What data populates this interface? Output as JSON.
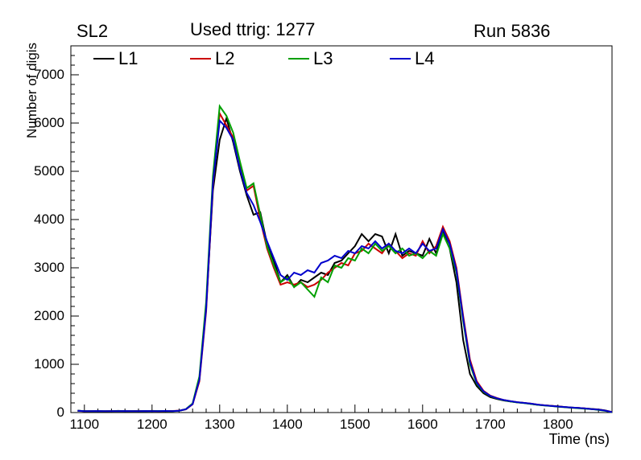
{
  "header": {
    "left_title": "SL2",
    "center_title": "Used ttrig: 1277",
    "right_title": "Run 5836"
  },
  "chart_data": {
    "type": "line",
    "title": "",
    "xlabel": "Time (ns)",
    "ylabel": "Number of digis",
    "xlim": [
      1080,
      1880
    ],
    "ylim": [
      0,
      7600
    ],
    "x_ticks": [
      1100,
      1200,
      1300,
      1400,
      1500,
      1600,
      1700,
      1800
    ],
    "y_ticks": [
      0,
      1000,
      2000,
      3000,
      4000,
      5000,
      6000,
      7000
    ],
    "x_minor_step": 20,
    "y_minor_step": 200,
    "grid": false,
    "legend_position": "top-inside-horizontal",
    "x": [
      1090,
      1100,
      1110,
      1120,
      1130,
      1140,
      1150,
      1160,
      1170,
      1180,
      1190,
      1200,
      1210,
      1220,
      1230,
      1240,
      1250,
      1260,
      1270,
      1280,
      1290,
      1300,
      1310,
      1320,
      1330,
      1340,
      1350,
      1360,
      1370,
      1380,
      1390,
      1400,
      1410,
      1420,
      1430,
      1440,
      1450,
      1460,
      1470,
      1480,
      1490,
      1500,
      1510,
      1520,
      1530,
      1540,
      1550,
      1560,
      1570,
      1580,
      1590,
      1600,
      1610,
      1620,
      1630,
      1640,
      1650,
      1660,
      1670,
      1680,
      1690,
      1700,
      1710,
      1720,
      1730,
      1740,
      1750,
      1760,
      1770,
      1780,
      1790,
      1800,
      1810,
      1820,
      1830,
      1840,
      1850,
      1860,
      1870,
      1880
    ],
    "series": [
      {
        "name": "L1",
        "color": "#000000",
        "values": [
          40,
          30,
          28,
          30,
          25,
          30,
          35,
          30,
          28,
          32,
          30,
          35,
          30,
          28,
          32,
          38,
          70,
          180,
          700,
          2200,
          4600,
          5650,
          6100,
          5600,
          5000,
          4500,
          4100,
          4150,
          3500,
          3150,
          2700,
          2850,
          2600,
          2750,
          2700,
          2800,
          2900,
          2850,
          3100,
          3150,
          3300,
          3450,
          3700,
          3550,
          3700,
          3650,
          3300,
          3700,
          3250,
          3350,
          3300,
          3250,
          3600,
          3300,
          3750,
          3400,
          2700,
          1500,
          800,
          550,
          400,
          320,
          280,
          250,
          230,
          210,
          200,
          180,
          160,
          150,
          140,
          130,
          115,
          105,
          95,
          85,
          75,
          65,
          45,
          10
        ]
      },
      {
        "name": "L2",
        "color": "#cc0000",
        "values": [
          35,
          30,
          30,
          28,
          30,
          32,
          30,
          28,
          30,
          32,
          34,
          30,
          28,
          30,
          33,
          36,
          65,
          170,
          650,
          2100,
          4700,
          6200,
          5950,
          5700,
          5100,
          4600,
          4700,
          4000,
          3400,
          3000,
          2650,
          2700,
          2650,
          2700,
          2600,
          2650,
          2750,
          2900,
          3000,
          3100,
          3050,
          3300,
          3350,
          3500,
          3400,
          3300,
          3500,
          3350,
          3200,
          3300,
          3250,
          3550,
          3300,
          3450,
          3850,
          3550,
          3000,
          2000,
          1100,
          650,
          450,
          350,
          300,
          260,
          235,
          215,
          200,
          185,
          165,
          150,
          140,
          125,
          115,
          100,
          95,
          85,
          70,
          60,
          40,
          10
        ]
      },
      {
        "name": "L3",
        "color": "#00a000",
        "values": [
          38,
          32,
          28,
          30,
          30,
          28,
          32,
          30,
          30,
          28,
          32,
          30,
          34,
          30,
          28,
          35,
          70,
          190,
          750,
          2300,
          4900,
          6350,
          6150,
          5800,
          5200,
          4650,
          4750,
          4100,
          3450,
          3050,
          2700,
          2800,
          2600,
          2700,
          2550,
          2400,
          2800,
          2700,
          3050,
          3000,
          3200,
          3150,
          3400,
          3300,
          3500,
          3350,
          3450,
          3300,
          3400,
          3250,
          3300,
          3200,
          3350,
          3250,
          3700,
          3400,
          2900,
          1900,
          1000,
          600,
          430,
          340,
          290,
          255,
          230,
          210,
          195,
          180,
          160,
          145,
          135,
          120,
          110,
          100,
          90,
          80,
          70,
          55,
          35,
          5
        ]
      },
      {
        "name": "L4",
        "color": "#0000cc",
        "values": [
          36,
          30,
          28,
          32,
          28,
          30,
          30,
          32,
          28,
          30,
          32,
          30,
          28,
          34,
          30,
          38,
          68,
          175,
          680,
          2150,
          4750,
          6050,
          5900,
          5650,
          5050,
          4550,
          4300,
          3950,
          3550,
          3200,
          2850,
          2750,
          2900,
          2850,
          2950,
          2900,
          3100,
          3150,
          3250,
          3200,
          3350,
          3300,
          3450,
          3400,
          3550,
          3400,
          3500,
          3350,
          3300,
          3400,
          3300,
          3500,
          3350,
          3400,
          3800,
          3500,
          2950,
          1950,
          1050,
          620,
          440,
          345,
          295,
          260,
          235,
          215,
          200,
          185,
          165,
          150,
          138,
          125,
          115,
          105,
          95,
          85,
          72,
          60,
          40,
          8
        ]
      }
    ]
  }
}
